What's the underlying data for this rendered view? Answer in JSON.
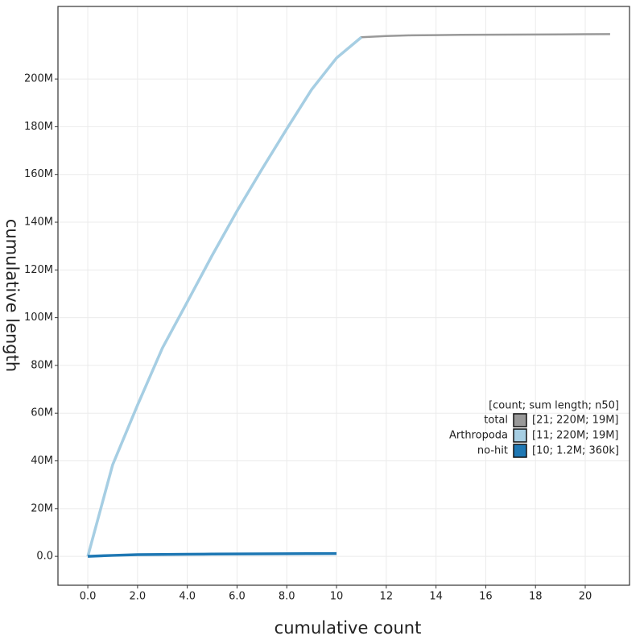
{
  "chart_data": {
    "type": "line",
    "x_label": "cumulative count",
    "y_label": "cumulative length",
    "xlim": [
      -1.2,
      21.78
    ],
    "ylim": [
      -12100000,
      230400000
    ],
    "xticks": [
      {
        "value": 0,
        "label": "0.0"
      },
      {
        "value": 2,
        "label": "2.0"
      },
      {
        "value": 4,
        "label": "4.0"
      },
      {
        "value": 6,
        "label": "6.0"
      },
      {
        "value": 8,
        "label": "8.0"
      },
      10,
      12,
      14,
      16,
      18,
      20
    ],
    "yticks": [
      {
        "value": 0,
        "label": "0.0"
      },
      {
        "value": 20000000,
        "label": "20M"
      },
      {
        "value": 40000000,
        "label": "40M"
      },
      {
        "value": 60000000,
        "label": "60M"
      },
      {
        "value": 80000000,
        "label": "80M"
      },
      {
        "value": 100000000,
        "label": "100M"
      },
      {
        "value": 120000000,
        "label": "120M"
      },
      {
        "value": 140000000,
        "label": "140M"
      },
      {
        "value": 160000000,
        "label": "160M"
      },
      {
        "value": 180000000,
        "label": "180M"
      },
      {
        "value": 200000000,
        "label": "200M"
      }
    ],
    "grid": true,
    "legend_title": "[count; sum length; n50]",
    "series": [
      {
        "name": "total",
        "legend_note": "[21; 220M; 19M]",
        "color": "#999999",
        "width": 2.5,
        "x": [
          0,
          1,
          2,
          3,
          4,
          5,
          6,
          7,
          8,
          9,
          10,
          11,
          12,
          13,
          14,
          15,
          16,
          17,
          18,
          19,
          20,
          21
        ],
        "values": [
          0,
          38400000,
          63400000,
          87300000,
          106600000,
          126100000,
          144700000,
          162200000,
          179100000,
          195600000,
          208800000,
          217500000,
          218000000,
          218300000,
          218400000,
          218500000,
          218550000,
          218600000,
          218650000,
          218700000,
          218750000,
          218800000
        ]
      },
      {
        "name": "Arthropoda",
        "legend_note": "[11; 220M; 19M]",
        "color": "#a6cee3",
        "width": 3.5,
        "x": [
          0,
          1,
          2,
          3,
          4,
          5,
          6,
          7,
          8,
          9,
          10,
          11
        ],
        "values": [
          0,
          38400000,
          63400000,
          87300000,
          106600000,
          126100000,
          144700000,
          162200000,
          179100000,
          195600000,
          208800000,
          217500000
        ]
      },
      {
        "name": "no-hit",
        "legend_note": "[10; 1.2M; 360k]",
        "color": "#1f78b4",
        "width": 3.5,
        "x": [
          0,
          1,
          2,
          3,
          4,
          5,
          6,
          7,
          8,
          9,
          10
        ],
        "values": [
          0,
          400000,
          700000,
          800000,
          900000,
          950000,
          1000000,
          1050000,
          1100000,
          1150000,
          1200000
        ]
      }
    ]
  }
}
